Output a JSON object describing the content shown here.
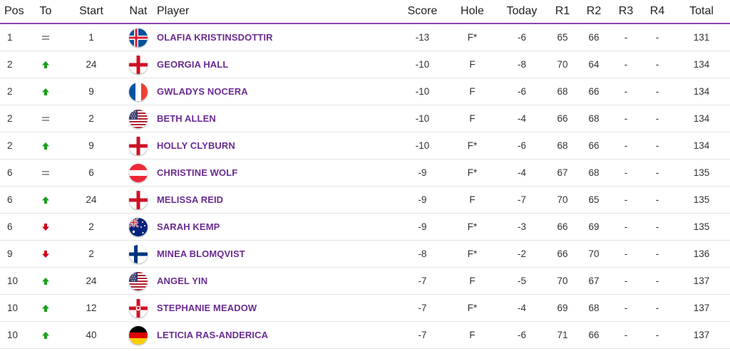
{
  "headers": {
    "pos": "Pos",
    "to": "To",
    "start": "Start",
    "nat": "Nat",
    "player": "Player",
    "score": "Score",
    "hole": "Hole",
    "today": "Today",
    "r1": "R1",
    "r2": "R2",
    "r3": "R3",
    "r4": "R4",
    "total": "Total"
  },
  "rows": [
    {
      "pos": "1",
      "move": "same",
      "start": "1",
      "flag": "iceland",
      "player": "OLAFIA KRISTINSDOTTIR",
      "score": "-13",
      "hole": "F*",
      "today": "-6",
      "r1": "65",
      "r2": "66",
      "r3": "-",
      "r4": "-",
      "total": "131"
    },
    {
      "pos": "2",
      "move": "up",
      "start": "24",
      "flag": "england",
      "player": "GEORGIA HALL",
      "score": "-10",
      "hole": "F",
      "today": "-8",
      "r1": "70",
      "r2": "64",
      "r3": "-",
      "r4": "-",
      "total": "134"
    },
    {
      "pos": "2",
      "move": "up",
      "start": "9",
      "flag": "france",
      "player": "GWLADYS NOCERA",
      "score": "-10",
      "hole": "F",
      "today": "-6",
      "r1": "68",
      "r2": "66",
      "r3": "-",
      "r4": "-",
      "total": "134"
    },
    {
      "pos": "2",
      "move": "same",
      "start": "2",
      "flag": "usa",
      "player": "BETH ALLEN",
      "score": "-10",
      "hole": "F",
      "today": "-4",
      "r1": "66",
      "r2": "68",
      "r3": "-",
      "r4": "-",
      "total": "134"
    },
    {
      "pos": "2",
      "move": "up",
      "start": "9",
      "flag": "england",
      "player": "HOLLY CLYBURN",
      "score": "-10",
      "hole": "F*",
      "today": "-6",
      "r1": "68",
      "r2": "66",
      "r3": "-",
      "r4": "-",
      "total": "134"
    },
    {
      "pos": "6",
      "move": "same",
      "start": "6",
      "flag": "austria",
      "player": "CHRISTINE WOLF",
      "score": "-9",
      "hole": "F*",
      "today": "-4",
      "r1": "67",
      "r2": "68",
      "r3": "-",
      "r4": "-",
      "total": "135"
    },
    {
      "pos": "6",
      "move": "up",
      "start": "24",
      "flag": "england",
      "player": "MELISSA REID",
      "score": "-9",
      "hole": "F",
      "today": "-7",
      "r1": "70",
      "r2": "65",
      "r3": "-",
      "r4": "-",
      "total": "135"
    },
    {
      "pos": "6",
      "move": "down",
      "start": "2",
      "flag": "australia",
      "player": "SARAH KEMP",
      "score": "-9",
      "hole": "F*",
      "today": "-3",
      "r1": "66",
      "r2": "69",
      "r3": "-",
      "r4": "-",
      "total": "135"
    },
    {
      "pos": "9",
      "move": "down",
      "start": "2",
      "flag": "finland",
      "player": "MINEA BLOMQVIST",
      "score": "-8",
      "hole": "F*",
      "today": "-2",
      "r1": "66",
      "r2": "70",
      "r3": "-",
      "r4": "-",
      "total": "136"
    },
    {
      "pos": "10",
      "move": "up",
      "start": "24",
      "flag": "usa",
      "player": "ANGEL YIN",
      "score": "-7",
      "hole": "F",
      "today": "-5",
      "r1": "70",
      "r2": "67",
      "r3": "-",
      "r4": "-",
      "total": "137"
    },
    {
      "pos": "10",
      "move": "up",
      "start": "12",
      "flag": "northern-ireland",
      "player": "STEPHANIE MEADOW",
      "score": "-7",
      "hole": "F*",
      "today": "-4",
      "r1": "69",
      "r2": "68",
      "r3": "-",
      "r4": "-",
      "total": "137"
    },
    {
      "pos": "10",
      "move": "up",
      "start": "40",
      "flag": "germany",
      "player": "LETICIA RAS-ANDERICA",
      "score": "-7",
      "hole": "F",
      "today": "-6",
      "r1": "71",
      "r2": "66",
      "r3": "-",
      "r4": "-",
      "total": "137"
    }
  ],
  "colors": {
    "accent": "#8e44ad",
    "player_link": "#6a2c91",
    "move_up": "#1a9e1a",
    "move_down": "#d0021b",
    "move_same": "#999999"
  }
}
